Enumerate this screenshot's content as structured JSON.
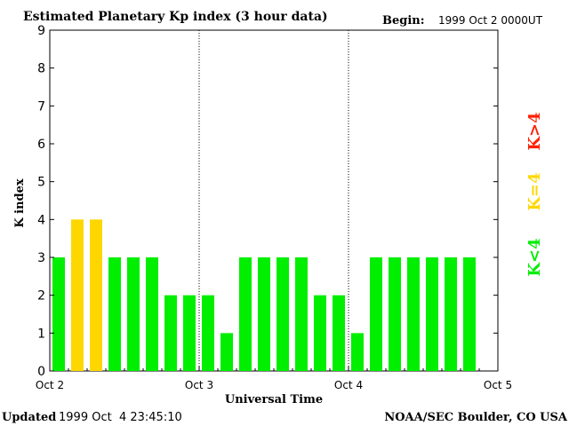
{
  "chart_data": {
    "type": "bar",
    "title": "Estimated Planetary Kp index (3 hour data)",
    "begin_label": "Begin:",
    "begin_value": "1999 Oct 2 0000UT",
    "xlabel": "Universal Time",
    "ylabel": "K index",
    "ylim": [
      0,
      9
    ],
    "y_ticks": [
      "0",
      "1",
      "2",
      "3",
      "4",
      "5",
      "6",
      "7",
      "8",
      "9"
    ],
    "x_ticks": [
      "Oct 2",
      "Oct 3",
      "Oct 4",
      "Oct 5"
    ],
    "bins_per_day": 8,
    "values": [
      3,
      4,
      4,
      3,
      3,
      3,
      2,
      2,
      2,
      1,
      3,
      3,
      3,
      3,
      2,
      2,
      1,
      3,
      3,
      3,
      3,
      3,
      3
    ],
    "legend": [
      {
        "label": "K<4",
        "color": "#00ee00"
      },
      {
        "label": "K=4",
        "color": "#ffd700"
      },
      {
        "label": "K>4",
        "color": "#ff2000"
      }
    ],
    "colors": {
      "low": "#00ee00",
      "storm": "#ffd700",
      "severe": "#ff2000"
    }
  },
  "footer": {
    "updated_label": "Updated",
    "updated_value": "1999 Oct  4 23:45:10",
    "source": "NOAA/SEC Boulder, CO USA"
  }
}
